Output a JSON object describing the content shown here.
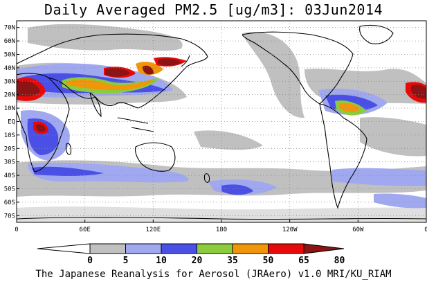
{
  "title": "Daily Averaged PM2.5 [ug/m3]: 03Jun2014",
  "footer": "The Japanese Reanalysis for Aerosol (JRAero) v1.0 MRI/KU_RIAM",
  "map": {
    "lat_labels": [
      "70N",
      "60N",
      "50N",
      "40N",
      "30N",
      "20N",
      "10N",
      "EQ",
      "10S",
      "20S",
      "30S",
      "40S",
      "50S",
      "60S",
      "70S"
    ],
    "lon_labels": [
      "0",
      "60E",
      "120E",
      "180",
      "120W",
      "60W",
      "0"
    ],
    "lat_values": [
      70,
      60,
      50,
      40,
      30,
      20,
      10,
      0,
      -10,
      -20,
      -30,
      -40,
      -50,
      -60,
      -70
    ],
    "lon_values": [
      0,
      60,
      120,
      180,
      240,
      300,
      360
    ]
  },
  "colorbar": {
    "levels": [
      "0",
      "5",
      "10",
      "20",
      "35",
      "50",
      "65",
      "80"
    ],
    "colors": [
      "#ffffff",
      "#c0c0c0",
      "#a0a8f0",
      "#4a50e6",
      "#8ccc3c",
      "#f0960a",
      "#e60a0a",
      "#8c1414"
    ]
  }
}
